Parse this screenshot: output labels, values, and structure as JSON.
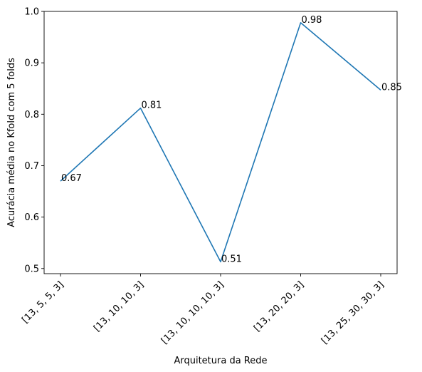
{
  "chart_data": {
    "type": "line",
    "title": "",
    "xlabel": "Arquitetura da Rede",
    "ylabel": "Acurácia média no Kfold com 5 folds",
    "categories": [
      "[13, 5, 5, 3]",
      "[13, 10, 10, 3]",
      "[13, 10, 10, 10, 3]",
      "[13, 20, 20, 3]",
      "[13, 25, 30, 30, 3]"
    ],
    "values": [
      0.67,
      0.812,
      0.513,
      0.978,
      0.847
    ],
    "data_labels": [
      "0.67",
      "0.81",
      "0.51",
      "0.98",
      "0.85"
    ],
    "ylim": [
      0.49,
      1.0
    ],
    "yticks": [
      0.5,
      0.6,
      0.7,
      0.8,
      0.9,
      1.0
    ],
    "ytick_labels": [
      "0.5",
      "0.6",
      "0.7",
      "0.8",
      "0.9",
      "1.0"
    ],
    "grid": false,
    "line_color": "#1f77b4"
  }
}
